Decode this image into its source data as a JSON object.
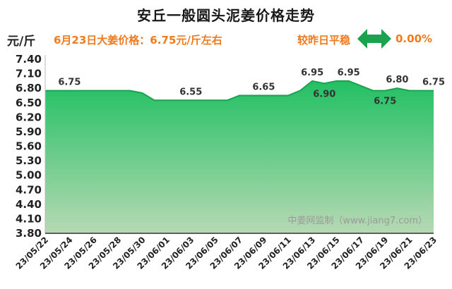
{
  "header": {
    "title": "安丘一般圆头泥姜价格走势",
    "unit": "元/斤",
    "price_line": "6月23日大姜价格：6.75元/斤左右",
    "compare_label": "较昨日平稳",
    "change": "0.00%",
    "trend_icon": "double-arrow-icon"
  },
  "watermark": "中姜网监制（www.jiang7.com）",
  "colors": {
    "area_top": "#22c063",
    "area_bottom": "#b7d9b4",
    "line": "#1aa24f",
    "accent": "#f07a1e",
    "icon": "#1aa24f"
  },
  "chart_data": {
    "type": "area",
    "title": "安丘一般圆头泥姜价格走势",
    "ylabel": "元/斤",
    "ylim": [
      3.8,
      7.4
    ],
    "yticks": [
      3.8,
      4.1,
      4.4,
      4.7,
      5.0,
      5.3,
      5.6,
      5.9,
      6.2,
      6.5,
      6.8,
      7.1,
      7.4
    ],
    "x": [
      "23/05/22",
      "23/05/23",
      "23/05/24",
      "23/05/25",
      "23/05/26",
      "23/05/27",
      "23/05/28",
      "23/05/29",
      "23/05/30",
      "23/05/31",
      "23/06/01",
      "23/06/02",
      "23/06/03",
      "23/06/04",
      "23/06/05",
      "23/06/06",
      "23/06/07",
      "23/06/08",
      "23/06/09",
      "23/06/10",
      "23/06/11",
      "23/06/12",
      "23/06/13",
      "23/06/14",
      "23/06/15",
      "23/06/16",
      "23/06/17",
      "23/06/18",
      "23/06/19",
      "23/06/20",
      "23/06/21",
      "23/06/22",
      "23/06/23"
    ],
    "xticks": [
      "23/05/22",
      "23/05/24",
      "23/05/26",
      "23/05/28",
      "23/05/30",
      "23/06/01",
      "23/06/03",
      "23/06/05",
      "23/06/07",
      "23/06/09",
      "23/06/11",
      "23/06/13",
      "23/06/15",
      "23/06/17",
      "23/06/19",
      "23/06/21",
      "23/06/23"
    ],
    "series": [
      {
        "values": [
          6.75,
          6.75,
          6.75,
          6.75,
          6.75,
          6.75,
          6.75,
          6.75,
          6.7,
          6.55,
          6.55,
          6.55,
          6.55,
          6.55,
          6.55,
          6.55,
          6.65,
          6.65,
          6.65,
          6.65,
          6.65,
          6.75,
          6.95,
          6.9,
          6.95,
          6.95,
          6.85,
          6.75,
          6.75,
          6.8,
          6.75,
          6.75,
          6.75
        ]
      }
    ],
    "data_labels": [
      {
        "x": "23/05/24",
        "text": "6.75",
        "pos": "above"
      },
      {
        "x": "23/06/03",
        "text": "6.55",
        "pos": "above"
      },
      {
        "x": "23/06/09",
        "text": "6.65",
        "pos": "above"
      },
      {
        "x": "23/06/13",
        "text": "6.95",
        "pos": "above"
      },
      {
        "x": "23/06/14",
        "text": "6.90",
        "pos": "below"
      },
      {
        "x": "23/06/16",
        "text": "6.95",
        "pos": "above"
      },
      {
        "x": "23/06/19",
        "text": "6.75",
        "pos": "below"
      },
      {
        "x": "23/06/20",
        "text": "6.80",
        "pos": "above"
      },
      {
        "x": "23/06/23",
        "text": "6.75",
        "pos": "above"
      }
    ],
    "grid": false,
    "legend": "none"
  }
}
